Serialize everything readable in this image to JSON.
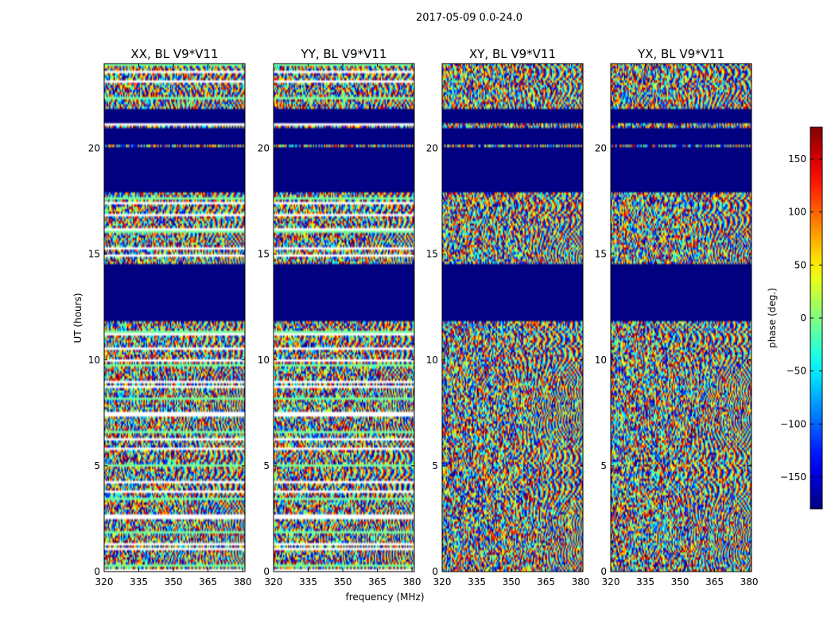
{
  "suptitle": "2017-05-09 0.0-24.0",
  "chart_data": {
    "type": "heatmap",
    "panels": [
      {
        "title": "XX, BL V9*V11",
        "pol": "XX"
      },
      {
        "title": "YY, BL V9*V11",
        "pol": "YY"
      },
      {
        "title": "XY, BL V9*V11",
        "pol": "XY"
      },
      {
        "title": "YX, BL V9*V11",
        "pol": "YX"
      }
    ],
    "xlabel": "frequency (MHz)",
    "ylabel": "UT (hours)",
    "xlim": [
      320,
      381
    ],
    "ylim": [
      0,
      24
    ],
    "xticks": [
      320,
      335,
      350,
      365,
      380
    ],
    "yticks": [
      0,
      5,
      10,
      15,
      20
    ],
    "colorbar": {
      "label": "phase (deg.)",
      "range": [
        -180,
        180
      ],
      "ticks": [
        150,
        100,
        50,
        0,
        -50,
        -100,
        -150
      ],
      "tick_labels": [
        "150",
        "100",
        "50",
        "0",
        "−50",
        "−100",
        "−150"
      ],
      "colormap": "jet"
    },
    "blanked_ut_ranges": [
      [
        11.8,
        14.5
      ],
      [
        17.9,
        20.0
      ],
      [
        20.2,
        21.0
      ],
      [
        21.2,
        21.9
      ]
    ],
    "colors": {
      "blank": "#000080",
      "frame": "#000000",
      "background": "#ffffff"
    }
  }
}
